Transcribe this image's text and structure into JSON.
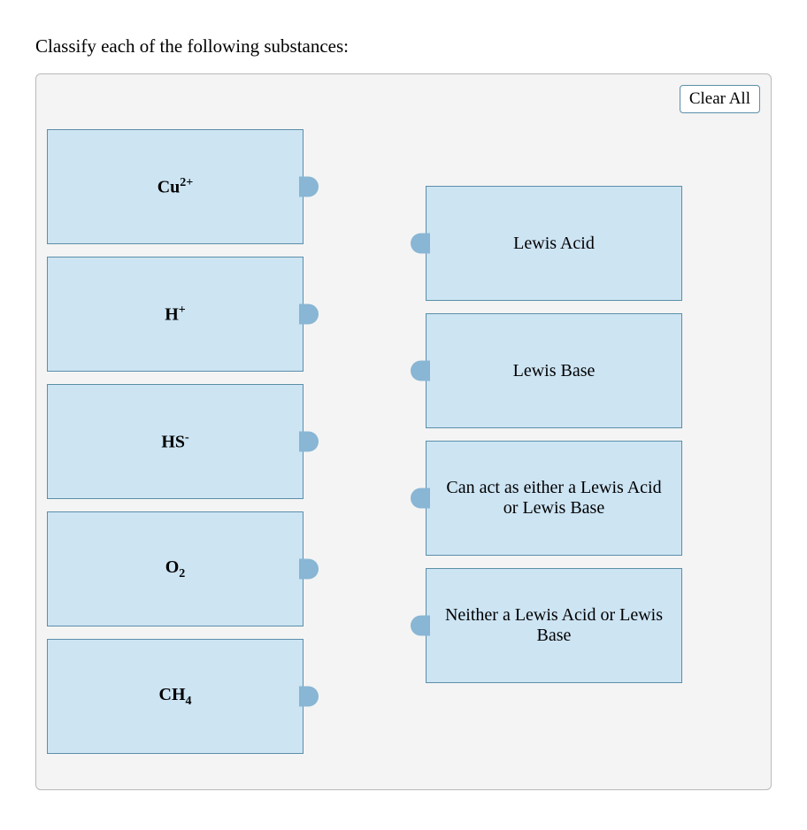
{
  "question": "Classify each of the following substances:",
  "clear_all_label": "Clear All",
  "colors": {
    "panel_bg": "#f4f4f4",
    "panel_border": "#b9b9b9",
    "tile_bg": "#cde4f3",
    "tile_border": "#5b8fa8",
    "connector": "#88b6d4"
  },
  "substances": [
    {
      "base": "Cu",
      "sub": "",
      "sup": "2+"
    },
    {
      "base": "H",
      "sub": "",
      "sup": "+"
    },
    {
      "base": "HS",
      "sub": "",
      "sup": "-"
    },
    {
      "base": "O",
      "sub": "2",
      "sup": ""
    },
    {
      "base": "CH",
      "sub": "4",
      "sup": ""
    }
  ],
  "categories": [
    "Lewis Acid",
    "Lewis Base",
    "Can act as either a Lewis Acid or Lewis Base",
    "Neither a Lewis Acid or Lewis Base"
  ]
}
